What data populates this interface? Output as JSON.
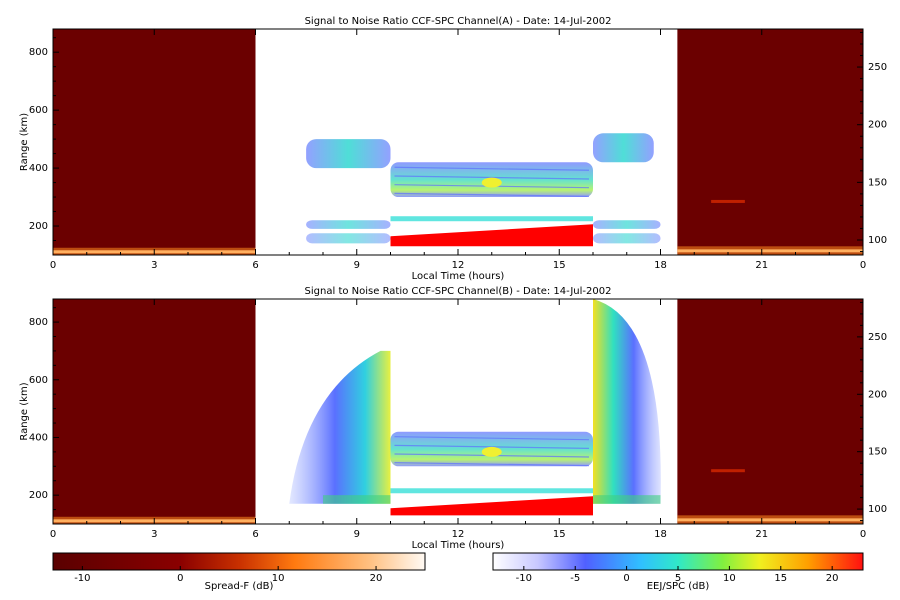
{
  "chart_data": [
    {
      "type": "heatmap",
      "title": "Signal to Noise Ratio CCF-SPC Channel(A) - Date: 14-Jul-2002",
      "xlabel": "Local Time (hours)",
      "ylabel": "Range (km)",
      "xlim": [
        0,
        24
      ],
      "x_ticks": [
        "0",
        "3",
        "6",
        "9",
        "12",
        "15",
        "18",
        "21",
        "0"
      ],
      "x_tick_values": [
        0,
        3,
        6,
        9,
        12,
        15,
        18,
        21,
        24
      ],
      "ylim": [
        100,
        880
      ],
      "y_ticks": [
        200,
        400,
        600,
        800
      ],
      "y_right_ticks": [
        100,
        150,
        200,
        250
      ],
      "y_right_lim": [
        87,
        283
      ],
      "spread_f_intervals": [
        [
          0,
          6
        ],
        [
          18.5,
          24
        ]
      ],
      "ejspc_intervals": [
        [
          6,
          10
        ],
        [
          10,
          16
        ],
        [
          16,
          18
        ]
      ],
      "features": [
        {
          "name": "lower-e-layer",
          "hours": [
            0,
            6
          ],
          "range_km": [
            100,
            125
          ],
          "db": 12
        },
        {
          "name": "lower-e-layer",
          "hours": [
            18.5,
            24
          ],
          "range_km": [
            100,
            130
          ],
          "db": 12
        },
        {
          "name": "thin-layer-right",
          "hours": [
            19.5,
            20.5
          ],
          "range_km": [
            275,
            290
          ],
          "db": 8
        },
        {
          "name": "e-region-echo",
          "hours": [
            10,
            16
          ],
          "range_km": [
            130,
            220
          ],
          "db": 22
        },
        {
          "name": "f-region-echo",
          "hours": [
            10,
            16
          ],
          "range_km": [
            300,
            420
          ],
          "db": 6
        },
        {
          "name": "evening-layer",
          "hours": [
            7.5,
            10
          ],
          "range_km": [
            400,
            500
          ],
          "db": 2
        },
        {
          "name": "evening-layer-right",
          "hours": [
            16,
            17.8
          ],
          "range_km": [
            420,
            520
          ],
          "db": 2
        }
      ]
    },
    {
      "type": "heatmap",
      "title": "Signal to Noise Ratio CCF-SPC Channel(B) - Date: 14-Jul-2002",
      "xlabel": "Local Time (hours)",
      "ylabel": "Range (km)",
      "xlim": [
        0,
        24
      ],
      "x_ticks": [
        "0",
        "3",
        "6",
        "9",
        "12",
        "15",
        "18",
        "21",
        "0"
      ],
      "x_tick_values": [
        0,
        3,
        6,
        9,
        12,
        15,
        18,
        21,
        24
      ],
      "ylim": [
        100,
        880
      ],
      "y_ticks": [
        200,
        400,
        600,
        800
      ],
      "y_right_ticks": [
        100,
        150,
        200,
        250
      ],
      "y_right_lim": [
        87,
        283
      ],
      "spread_f_intervals": [
        [
          0,
          6
        ],
        [
          18.5,
          24
        ]
      ],
      "ejspc_intervals": [
        [
          6,
          10
        ],
        [
          10,
          16
        ],
        [
          16,
          18
        ]
      ],
      "features": [
        {
          "name": "lower-e-layer",
          "hours": [
            0,
            6
          ],
          "range_km": [
            100,
            125
          ],
          "db": 12
        },
        {
          "name": "lower-e-layer",
          "hours": [
            18.5,
            24
          ],
          "range_km": [
            100,
            130
          ],
          "db": 12
        },
        {
          "name": "thin-layer-right",
          "hours": [
            19.5,
            20.5
          ],
          "range_km": [
            275,
            290
          ],
          "db": 8
        },
        {
          "name": "e-region-echo",
          "hours": [
            10,
            16
          ],
          "range_km": [
            130,
            210
          ],
          "db": 22
        },
        {
          "name": "f-region-echo",
          "hours": [
            10,
            16
          ],
          "range_km": [
            300,
            420
          ],
          "db": 6
        },
        {
          "name": "spread-f-plume-left",
          "hours": [
            7,
            10
          ],
          "range_km": [
            170,
            700
          ],
          "db": 4
        },
        {
          "name": "spread-f-plume-right",
          "hours": [
            16,
            18
          ],
          "range_km": [
            170,
            880
          ],
          "db": 8
        }
      ]
    }
  ],
  "colorbars": [
    {
      "label": "Spread-F (dB)",
      "min": -13,
      "max": 25,
      "ticks": [
        "-10",
        "0",
        "10",
        "20"
      ],
      "tick_values": [
        -10,
        0,
        10,
        20
      ]
    },
    {
      "label": "EEJ/SPC (dB)",
      "min": -13,
      "max": 23,
      "ticks": [
        "-10",
        "-5",
        "0",
        "5",
        "10",
        "15",
        "20"
      ],
      "tick_values": [
        -10,
        -5,
        0,
        5,
        10,
        15,
        20
      ]
    }
  ],
  "colors": {
    "spread_f_background": "#6b0000",
    "spread_f_layer": "#ff8a1e",
    "e_region_red": "#ff0000",
    "jet_cyan": "#38e0d8",
    "jet_blue": "#6070ff",
    "jet_yellow": "#f0f030",
    "jet_green": "#40d080"
  }
}
